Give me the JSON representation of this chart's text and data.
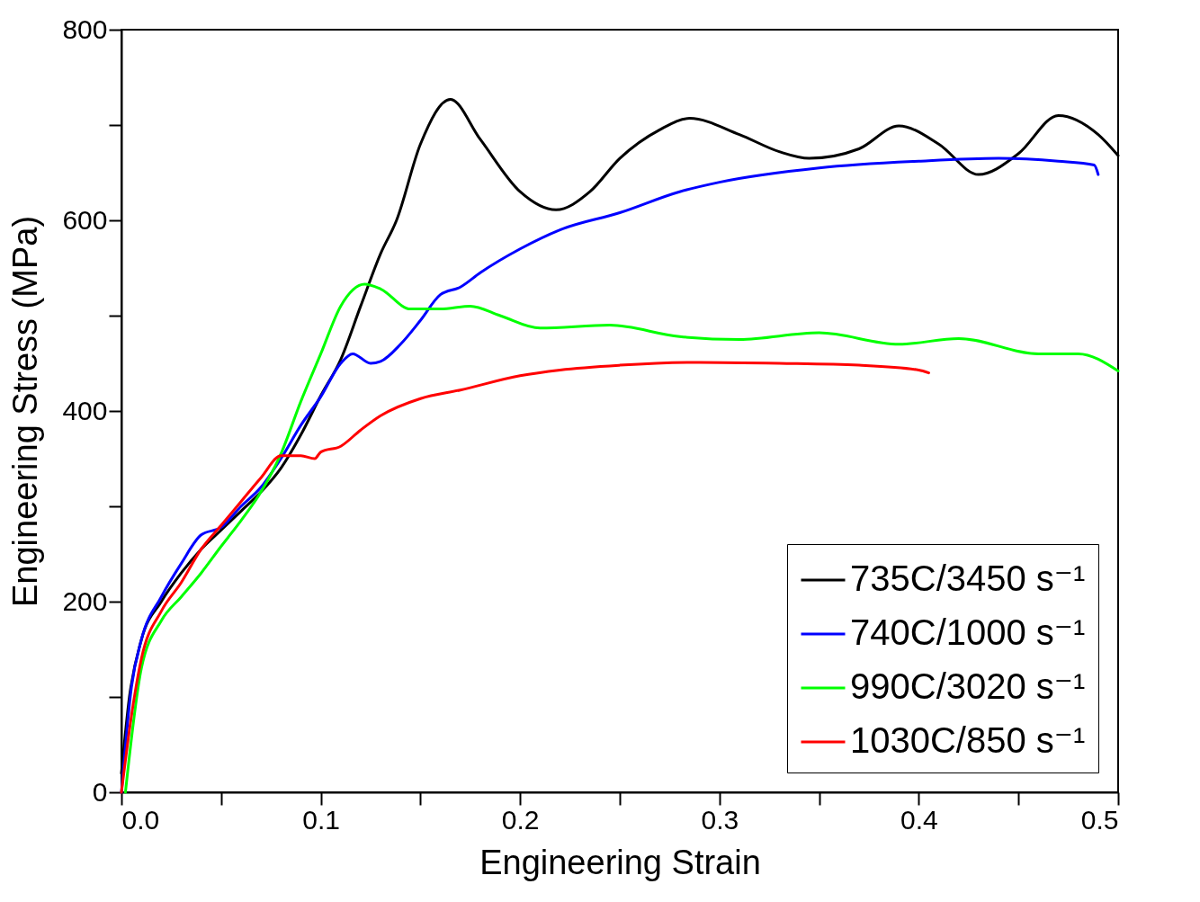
{
  "chart_data": {
    "type": "line",
    "xlabel": "Engineering Strain",
    "ylabel": "Engineering Stress (MPa)",
    "xlim": [
      0,
      0.5
    ],
    "ylim": [
      0,
      800
    ],
    "xticks": [
      {
        "value": 0,
        "label": "0.0"
      },
      {
        "value": 0.05,
        "label": null
      },
      0.1,
      {
        "value": 0.15,
        "label": null
      },
      0.2,
      {
        "value": 0.25,
        "label": null
      },
      0.3,
      {
        "value": 0.35,
        "label": null
      },
      0.4,
      {
        "value": 0.45,
        "label": null
      },
      0.5
    ],
    "yticks": [
      0,
      {
        "value": 100,
        "label": null
      },
      200,
      {
        "value": 300,
        "label": null
      },
      400,
      {
        "value": 500,
        "label": null
      },
      600,
      {
        "value": 700,
        "label": null
      },
      800
    ],
    "grid": false,
    "legend": "bottom right",
    "marker": "none",
    "line_style": "solid",
    "series": [
      {
        "name": "735C/3450 s⁻¹",
        "color": "#000000",
        "x": [
          0,
          0.004,
          0.01,
          0.02,
          0.03,
          0.04,
          0.05,
          0.06,
          0.07,
          0.08,
          0.09,
          0.1,
          0.11,
          0.12,
          0.13,
          0.138,
          0.15,
          0.165,
          0.18,
          0.2,
          0.218,
          0.235,
          0.25,
          0.27,
          0.285,
          0.31,
          0.33,
          0.345,
          0.37,
          0.39,
          0.41,
          0.43,
          0.45,
          0.47,
          0.49,
          0.5
        ],
        "values": [
          20,
          100,
          160,
          200,
          230,
          255,
          275,
          295,
          315,
          340,
          375,
          416,
          454,
          510,
          565,
          600,
          680,
          727,
          685,
          630,
          611,
          630,
          665,
          695,
          707,
          690,
          672,
          665,
          675,
          699,
          680,
          648,
          670,
          710,
          690,
          668
        ]
      },
      {
        "name": "740C/1000 s⁻¹",
        "color": "#0000ff",
        "x": [
          0,
          0.005,
          0.01,
          0.02,
          0.03,
          0.04,
          0.05,
          0.06,
          0.07,
          0.08,
          0.09,
          0.1,
          0.11,
          0.116,
          0.125,
          0.13,
          0.14,
          0.15,
          0.16,
          0.17,
          0.18,
          0.2,
          0.22,
          0.25,
          0.28,
          0.3,
          0.35,
          0.4,
          0.44,
          0.47,
          0.488,
          0.49
        ],
        "values": [
          0,
          110,
          160,
          205,
          240,
          270,
          278,
          300,
          320,
          350,
          385,
          415,
          450,
          460,
          450,
          452,
          470,
          495,
          522,
          530,
          545,
          570,
          590,
          608,
          630,
          640,
          655,
          662,
          665,
          662,
          658,
          648
        ]
      },
      {
        "name": "990C/3020 s⁻¹",
        "color": "#00ff00",
        "x": [
          0.002,
          0.01,
          0.02,
          0.03,
          0.04,
          0.05,
          0.06,
          0.07,
          0.08,
          0.09,
          0.1,
          0.11,
          0.122,
          0.13,
          0.145,
          0.16,
          0.175,
          0.19,
          0.21,
          0.245,
          0.28,
          0.31,
          0.35,
          0.39,
          0.42,
          0.46,
          0.48,
          0.5
        ],
        "values": [
          0,
          130,
          180,
          205,
          230,
          258,
          285,
          315,
          355,
          410,
          460,
          510,
          533,
          528,
          507,
          507,
          510,
          500,
          487,
          490,
          478,
          475,
          482,
          470,
          476,
          460,
          460,
          442
        ]
      },
      {
        "name": "1030C/850 s⁻¹",
        "color": "#ff0000",
        "x": [
          0,
          0.005,
          0.01,
          0.02,
          0.03,
          0.04,
          0.05,
          0.06,
          0.07,
          0.08,
          0.09,
          0.097,
          0.1,
          0.11,
          0.12,
          0.13,
          0.15,
          0.17,
          0.2,
          0.22,
          0.25,
          0.29,
          0.33,
          0.37,
          0.4,
          0.405
        ],
        "values": [
          0,
          80,
          140,
          190,
          220,
          255,
          280,
          305,
          330,
          353,
          353,
          350,
          357,
          363,
          380,
          395,
          413,
          422,
          437,
          443,
          448,
          451,
          450,
          448,
          443,
          440
        ]
      }
    ]
  }
}
